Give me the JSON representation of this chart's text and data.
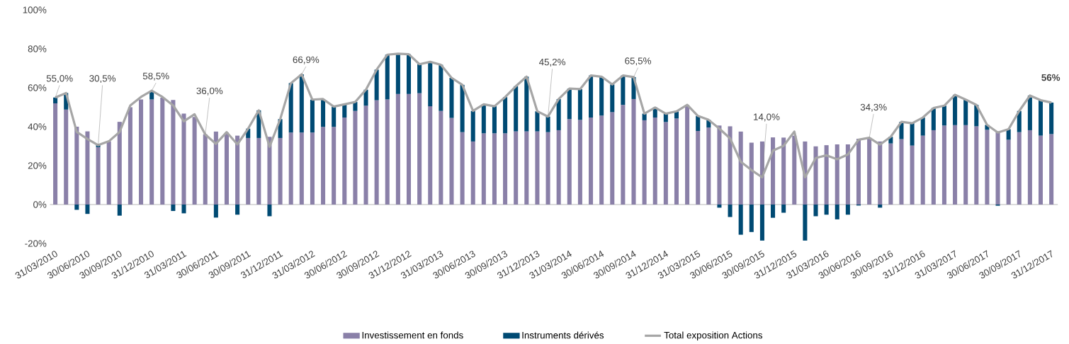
{
  "chart_data": {
    "type": "bar",
    "stacked": true,
    "legend": "bottom",
    "categories": [
      "31/03/2010",
      null,
      null,
      "30/06/2010",
      null,
      null,
      "30/09/2010",
      null,
      null,
      "31/12/2010",
      null,
      null,
      "31/03/2011",
      null,
      null,
      "30/06/2011",
      null,
      null,
      "30/09/2011",
      null,
      null,
      "31/12/2011",
      null,
      null,
      "31/03/2012",
      null,
      null,
      "30/06/2012",
      null,
      null,
      "30/09/2012",
      null,
      null,
      "31/12/2012",
      null,
      null,
      "31/03/2013",
      null,
      null,
      "30/06/2013",
      null,
      null,
      "30/09/2013",
      null,
      null,
      "31/12/2013",
      null,
      null,
      "31/03/2014",
      null,
      null,
      "30/06/2014",
      null,
      null,
      "30/09/2014",
      null,
      null,
      "31/12/2014",
      null,
      null,
      "31/03/2015",
      null,
      null,
      "30/06/2015",
      null,
      null,
      "30/09/2015",
      null,
      null,
      "31/12/2015",
      null,
      null,
      "31/03/2016",
      null,
      null,
      "30/06/2016",
      null,
      null,
      "30/09/2016",
      null,
      null,
      "31/12/2016",
      null,
      null,
      "31/03/2017",
      null,
      null,
      "30/06/2017",
      null,
      null,
      "30/09/2017",
      null,
      null,
      "31/12/2017"
    ],
    "ylim": [
      -20,
      100
    ],
    "yticks": [
      {
        "value": -20,
        "label": "-20%"
      },
      {
        "value": 0,
        "label": "0%"
      },
      {
        "value": 20,
        "label": "20%"
      },
      {
        "value": 40,
        "label": "40%"
      },
      {
        "value": 60,
        "label": "60%"
      },
      {
        "value": 80,
        "label": "80%"
      },
      {
        "value": 100,
        "label": "100%"
      }
    ],
    "series": [
      {
        "name": "Investissement en fonds",
        "type": "bar",
        "color": "#8a80a8",
        "values": [
          52,
          48.8,
          40,
          37.6,
          29.5,
          32.5,
          42.5,
          50,
          54,
          54,
          54.9,
          53.7,
          46.7,
          45,
          36.1,
          37.5,
          37,
          35.4,
          34.2,
          34.2,
          34.8,
          34.2,
          37,
          37,
          37,
          39.9,
          39.9,
          44.7,
          48.1,
          50.8,
          53.6,
          54,
          56.8,
          56.8,
          57.2,
          50.5,
          48.1,
          44.5,
          37.2,
          32.4,
          36.6,
          36.6,
          36.6,
          37.6,
          37.6,
          37.6,
          37.2,
          38.2,
          43.9,
          43.5,
          44.7,
          45.7,
          47.5,
          51.2,
          54.2,
          43.3,
          44.7,
          42.4,
          44.2,
          51.2,
          37.8,
          39.6,
          40.6,
          40.2,
          37.5,
          31.8,
          32.4,
          34.5,
          34.4,
          35.4,
          32.4,
          29.9,
          30.5,
          30.9,
          30.9,
          33.8,
          34.3,
          32.4,
          31.4,
          33.6,
          30.3,
          35.4,
          38.2,
          40.6,
          40.8,
          40.8,
          40.2,
          38.4,
          37.6,
          33.3,
          37.2,
          38.2,
          35.4,
          36.2
        ]
      },
      {
        "name": "Instruments dérivés",
        "type": "bar",
        "color": "#004a73",
        "values": [
          3,
          8.5,
          -2.7,
          -4.8,
          1,
          null,
          -5.7,
          null,
          null,
          4.5,
          null,
          -3.3,
          -4.5,
          null,
          null,
          -6.7,
          null,
          -5.2,
          4.8,
          14.2,
          -6,
          9.7,
          25.4,
          29.9,
          16.9,
          14.3,
          10.4,
          6.8,
          4.6,
          8.2,
          15.7,
          23,
          20.7,
          20.4,
          14.9,
          22.8,
          23.7,
          20.6,
          24.3,
          15.7,
          14.9,
          13.9,
          18.6,
          23.2,
          28.1,
          10.3,
          8,
          16,
          15.7,
          15.8,
          21.6,
          20,
          14.2,
          15.1,
          11.3,
          3.4,
          5.2,
          4.3,
          3.7,
          null,
          7.7,
          3.9,
          -1.6,
          -6.4,
          -15.5,
          -14.1,
          -18.5,
          -6.8,
          -4.2,
          null,
          -18.5,
          -6,
          -5.2,
          -7.6,
          -5.2,
          -0.5,
          null,
          -1.6,
          3.4,
          8.9,
          11.5,
          9.3,
          11.4,
          10.2,
          15.6,
          13.1,
          11,
          2.5,
          -0.6,
          5.4,
          10.9,
          17.8,
          18.2,
          16.2
        ]
      },
      {
        "name": "Total exposition Actions",
        "type": "line",
        "color": "#a6a6a6",
        "values": [
          55.0,
          57.3,
          37.3,
          33.7,
          30.5,
          32.5,
          37.3,
          50.9,
          55.3,
          58.5,
          55.3,
          50.9,
          42.8,
          46.4,
          36.0,
          31.2,
          37.2,
          30.9,
          39,
          48.4,
          29.7,
          43.9,
          62.4,
          66.9,
          53.9,
          54.2,
          50.3,
          51.5,
          52.7,
          59,
          69.3,
          77,
          77.5,
          77.2,
          72.1,
          73.3,
          71.8,
          65.1,
          61.5,
          48.1,
          51.5,
          50.5,
          55.2,
          60.8,
          65.7,
          47.9,
          45.2,
          54.2,
          59.6,
          59.3,
          66.3,
          65.7,
          61.7,
          66.3,
          65.5,
          46.7,
          49.9,
          46.7,
          47.9,
          51.2,
          45.5,
          43.5,
          39,
          34,
          22,
          17.7,
          14.0,
          27.7,
          30.2,
          37.5,
          14,
          23.9,
          25.3,
          23.3,
          25.7,
          33.3,
          34.3,
          30.8,
          34.8,
          42.5,
          41.8,
          44.7,
          49.6,
          50.8,
          56.4,
          53.9,
          51.2,
          40.9,
          37,
          38.7,
          48.1,
          56,
          53.6,
          52.4
        ],
        "value_labels": [
          "55,0%",
          null,
          null,
          null,
          "30,5%",
          null,
          null,
          null,
          null,
          "58,5%",
          null,
          null,
          null,
          null,
          "36,0%",
          null,
          null,
          null,
          null,
          null,
          null,
          null,
          null,
          "66,9%",
          null,
          null,
          null,
          null,
          null,
          null,
          null,
          null,
          null,
          null,
          null,
          null,
          null,
          null,
          null,
          null,
          null,
          null,
          null,
          null,
          null,
          null,
          "45,2%",
          null,
          null,
          null,
          null,
          null,
          null,
          null,
          "65,5%",
          null,
          null,
          null,
          null,
          null,
          null,
          null,
          null,
          null,
          null,
          null,
          "14,0%",
          null,
          null,
          null,
          null,
          null,
          null,
          null,
          null,
          null,
          "34,3%",
          null,
          null,
          null,
          null,
          null,
          null,
          null,
          null,
          null,
          null,
          null,
          null,
          null,
          null,
          "**56%**",
          null,
          null
        ]
      }
    ]
  }
}
